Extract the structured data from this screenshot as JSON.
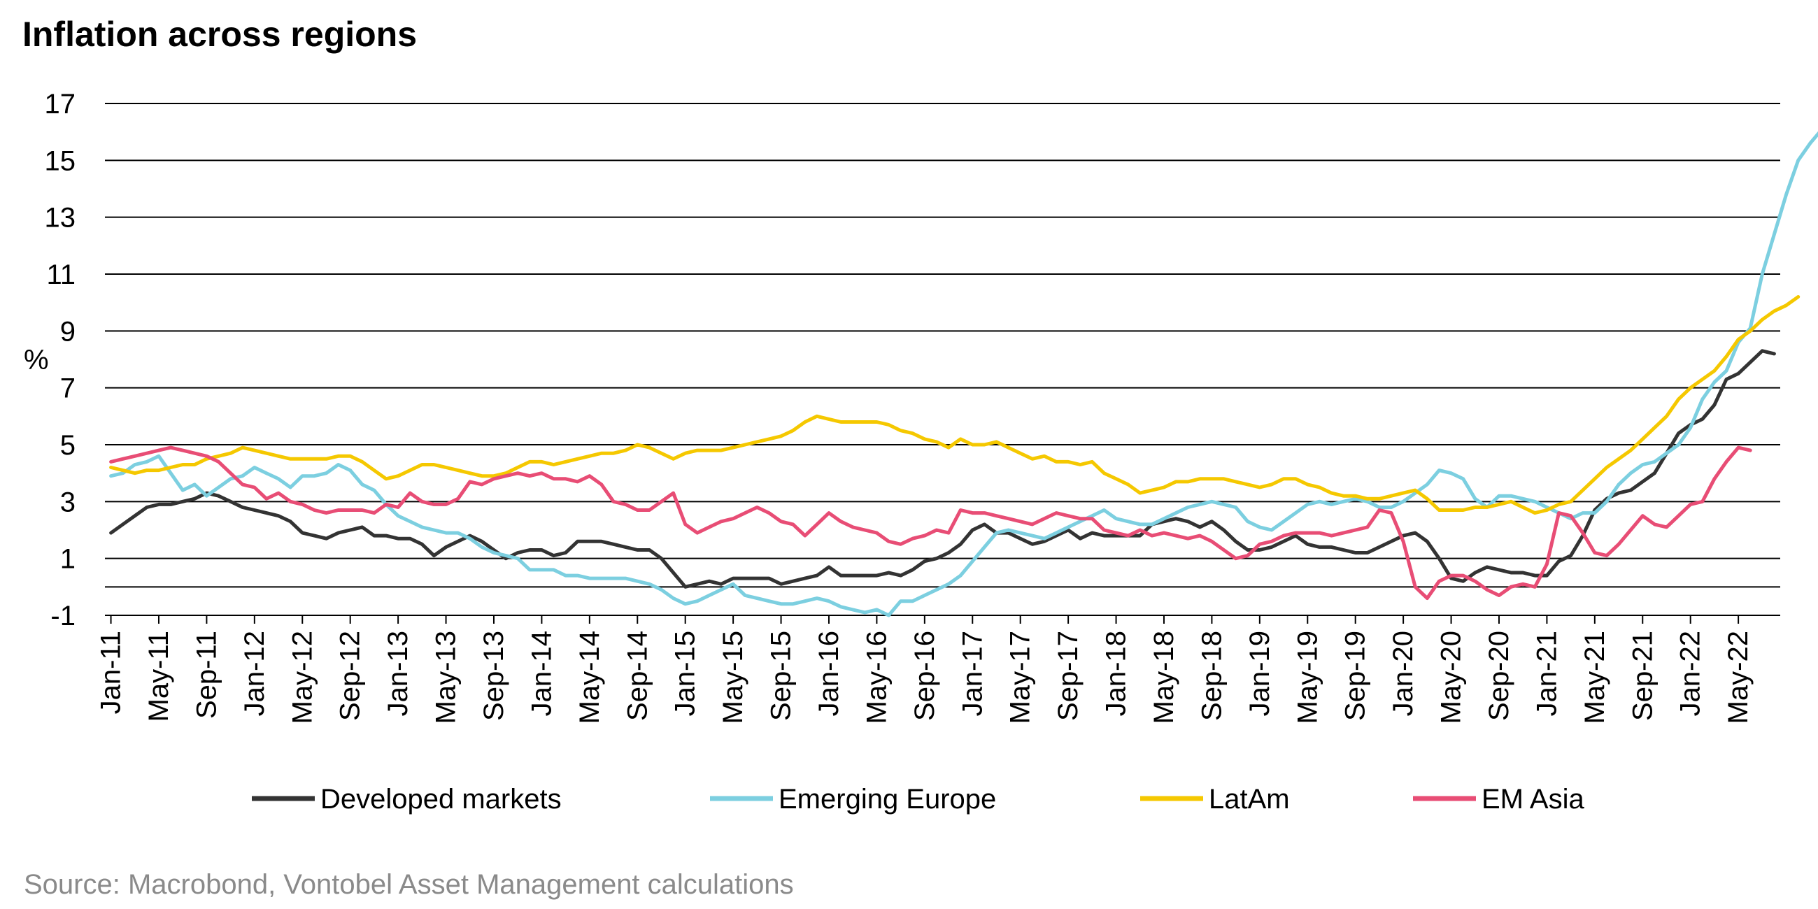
{
  "chart_data": {
    "type": "line",
    "title": "Inflation across regions",
    "ylabel": "%",
    "xlabel": "",
    "source": "Source: Macrobond, Vontobel Asset Management calculations",
    "ylim": [
      -1,
      17
    ],
    "yticks": [
      17,
      15,
      13,
      11,
      9,
      7,
      5,
      3,
      1,
      -1
    ],
    "x_start": "2011-01",
    "grid": true,
    "legend_position": "bottom",
    "xtick_labels": [
      "Jan-11",
      "May-11",
      "Sep-11",
      "Jan-12",
      "May-12",
      "Sep-12",
      "Jan-13",
      "May-13",
      "Sep-13",
      "Jan-14",
      "May-14",
      "Sep-14",
      "Jan-15",
      "May-15",
      "Sep-15",
      "Jan-16",
      "May-16",
      "Sep-16",
      "Jan-17",
      "May-17",
      "Sep-17",
      "Jan-18",
      "May-18",
      "Sep-18",
      "Jan-19",
      "May-19",
      "Sep-19",
      "Jan-20",
      "May-20",
      "Sep-20",
      "Jan-21",
      "May-21",
      "Sep-21",
      "Jan-22",
      "May-22"
    ],
    "series": [
      {
        "name": "Developed markets",
        "color": "#333333",
        "values": [
          1.9,
          2.2,
          2.5,
          2.8,
          2.9,
          2.9,
          3.0,
          3.1,
          3.3,
          3.2,
          3.0,
          2.8,
          2.7,
          2.6,
          2.5,
          2.3,
          1.9,
          1.8,
          1.7,
          1.9,
          2.0,
          2.1,
          1.8,
          1.8,
          1.7,
          1.7,
          1.5,
          1.1,
          1.4,
          1.6,
          1.8,
          1.6,
          1.3,
          1.0,
          1.2,
          1.3,
          1.3,
          1.1,
          1.2,
          1.6,
          1.6,
          1.6,
          1.5,
          1.4,
          1.3,
          1.3,
          1.0,
          0.5,
          0.0,
          0.1,
          0.2,
          0.1,
          0.3,
          0.3,
          0.3,
          0.3,
          0.1,
          0.2,
          0.3,
          0.4,
          0.7,
          0.4,
          0.4,
          0.4,
          0.4,
          0.5,
          0.4,
          0.6,
          0.9,
          1.0,
          1.2,
          1.5,
          2.0,
          2.2,
          1.9,
          1.9,
          1.7,
          1.5,
          1.6,
          1.8,
          2.0,
          1.7,
          1.9,
          1.8,
          1.8,
          1.8,
          1.8,
          2.2,
          2.3,
          2.4,
          2.3,
          2.1,
          2.3,
          2.0,
          1.6,
          1.3,
          1.3,
          1.4,
          1.6,
          1.8,
          1.5,
          1.4,
          1.4,
          1.3,
          1.2,
          1.2,
          1.4,
          1.6,
          1.8,
          1.9,
          1.6,
          1.0,
          0.3,
          0.2,
          0.5,
          0.7,
          0.6,
          0.5,
          0.5,
          0.4,
          0.4,
          0.9,
          1.1,
          1.8,
          2.7,
          3.1,
          3.3,
          3.4,
          3.7,
          4.0,
          4.7,
          5.4,
          5.7,
          5.9,
          6.4,
          7.3,
          7.5,
          7.9,
          8.3,
          8.2
        ]
      },
      {
        "name": "Emerging Europe",
        "color": "#7ccfe0",
        "values": [
          3.9,
          4.0,
          4.3,
          4.4,
          4.6,
          4.0,
          3.4,
          3.6,
          3.2,
          3.5,
          3.8,
          3.9,
          4.2,
          4.0,
          3.8,
          3.5,
          3.9,
          3.9,
          4.0,
          4.3,
          4.1,
          3.6,
          3.4,
          2.9,
          2.5,
          2.3,
          2.1,
          2.0,
          1.9,
          1.9,
          1.7,
          1.4,
          1.2,
          1.1,
          1.0,
          0.6,
          0.6,
          0.6,
          0.4,
          0.4,
          0.3,
          0.3,
          0.3,
          0.3,
          0.2,
          0.1,
          -0.1,
          -0.4,
          -0.6,
          -0.5,
          -0.3,
          -0.1,
          0.1,
          -0.3,
          -0.4,
          -0.5,
          -0.6,
          -0.6,
          -0.5,
          -0.4,
          -0.5,
          -0.7,
          -0.8,
          -0.9,
          -0.8,
          -1.0,
          -0.5,
          -0.5,
          -0.3,
          -0.1,
          0.1,
          0.4,
          0.9,
          1.4,
          1.9,
          2.0,
          1.9,
          1.8,
          1.7,
          1.9,
          2.1,
          2.3,
          2.5,
          2.7,
          2.4,
          2.3,
          2.2,
          2.2,
          2.4,
          2.6,
          2.8,
          2.9,
          3.0,
          2.9,
          2.8,
          2.3,
          2.1,
          2.0,
          2.3,
          2.6,
          2.9,
          3.0,
          2.9,
          3.0,
          3.1,
          3.0,
          2.8,
          2.8,
          3.0,
          3.3,
          3.6,
          4.1,
          4.0,
          3.8,
          3.1,
          2.8,
          3.2,
          3.2,
          3.1,
          3.0,
          2.8,
          2.6,
          2.4,
          2.6,
          2.6,
          3.0,
          3.6,
          4.0,
          4.3,
          4.4,
          4.7,
          5.0,
          5.6,
          6.6,
          7.2,
          7.6,
          8.6,
          9.1,
          11.0,
          12.4,
          13.8,
          15.0,
          15.6,
          16.1
        ]
      },
      {
        "name": "LatAm",
        "color": "#f5c800",
        "values": [
          4.2,
          4.1,
          4.0,
          4.1,
          4.1,
          4.2,
          4.3,
          4.3,
          4.5,
          4.6,
          4.7,
          4.9,
          4.8,
          4.7,
          4.6,
          4.5,
          4.5,
          4.5,
          4.5,
          4.6,
          4.6,
          4.4,
          4.1,
          3.8,
          3.9,
          4.1,
          4.3,
          4.3,
          4.2,
          4.1,
          4.0,
          3.9,
          3.9,
          4.0,
          4.2,
          4.4,
          4.4,
          4.3,
          4.4,
          4.5,
          4.6,
          4.7,
          4.7,
          4.8,
          5.0,
          4.9,
          4.7,
          4.5,
          4.7,
          4.8,
          4.8,
          4.8,
          4.9,
          5.0,
          5.1,
          5.2,
          5.3,
          5.5,
          5.8,
          6.0,
          5.9,
          5.8,
          5.8,
          5.8,
          5.8,
          5.7,
          5.5,
          5.4,
          5.2,
          5.1,
          4.9,
          5.2,
          5.0,
          5.0,
          5.1,
          4.9,
          4.7,
          4.5,
          4.6,
          4.4,
          4.4,
          4.3,
          4.4,
          4.0,
          3.8,
          3.6,
          3.3,
          3.4,
          3.5,
          3.7,
          3.7,
          3.8,
          3.8,
          3.8,
          3.7,
          3.6,
          3.5,
          3.6,
          3.8,
          3.8,
          3.6,
          3.5,
          3.3,
          3.2,
          3.2,
          3.1,
          3.1,
          3.2,
          3.3,
          3.4,
          3.1,
          2.7,
          2.7,
          2.7,
          2.8,
          2.8,
          2.9,
          3.0,
          2.8,
          2.6,
          2.7,
          2.9,
          3.0,
          3.4,
          3.8,
          4.2,
          4.5,
          4.8,
          5.2,
          5.6,
          6.0,
          6.6,
          7.0,
          7.3,
          7.6,
          8.1,
          8.7,
          9.0,
          9.4,
          9.7,
          9.9,
          10.2
        ]
      },
      {
        "name": "EM Asia",
        "color": "#e84d75",
        "values": [
          4.4,
          4.5,
          4.6,
          4.7,
          4.8,
          4.9,
          4.8,
          4.7,
          4.6,
          4.4,
          4.0,
          3.6,
          3.5,
          3.1,
          3.3,
          3.0,
          2.9,
          2.7,
          2.6,
          2.7,
          2.7,
          2.7,
          2.6,
          2.9,
          2.8,
          3.3,
          3.0,
          2.9,
          2.9,
          3.1,
          3.7,
          3.6,
          3.8,
          3.9,
          4.0,
          3.9,
          4.0,
          3.8,
          3.8,
          3.7,
          3.9,
          3.6,
          3.0,
          2.9,
          2.7,
          2.7,
          3.0,
          3.3,
          2.2,
          1.9,
          2.1,
          2.3,
          2.4,
          2.6,
          2.8,
          2.6,
          2.3,
          2.2,
          1.8,
          2.2,
          2.6,
          2.3,
          2.1,
          2.0,
          1.9,
          1.6,
          1.5,
          1.7,
          1.8,
          2.0,
          1.9,
          2.7,
          2.6,
          2.6,
          2.5,
          2.4,
          2.3,
          2.2,
          2.4,
          2.6,
          2.5,
          2.4,
          2.4,
          2.0,
          1.9,
          1.8,
          2.0,
          1.8,
          1.9,
          1.8,
          1.7,
          1.8,
          1.6,
          1.3,
          1.0,
          1.1,
          1.5,
          1.6,
          1.8,
          1.9,
          1.9,
          1.9,
          1.8,
          1.9,
          2.0,
          2.1,
          2.7,
          2.6,
          1.6,
          0.0,
          -0.4,
          0.2,
          0.4,
          0.4,
          0.2,
          -0.1,
          -0.3,
          0.0,
          0.1,
          0.0,
          0.8,
          2.6,
          2.5,
          1.9,
          1.2,
          1.1,
          1.5,
          2.0,
          2.5,
          2.2,
          2.1,
          2.5,
          2.9,
          3.0,
          3.8,
          4.4,
          4.9,
          4.8
        ]
      }
    ]
  }
}
